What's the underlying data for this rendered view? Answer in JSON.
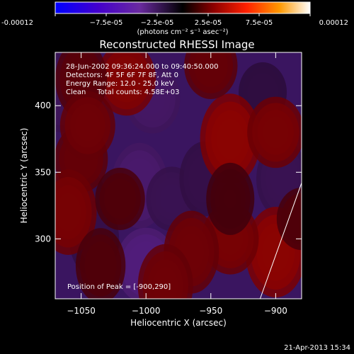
{
  "chart_data": {
    "type": "heatmap",
    "title": "Reconstructed RHESSI Image",
    "xlabel": "Heliocentric X (arcsec)",
    "ylabel": "Heliocentric Y (arcsec)",
    "xlim": [
      -1070,
      -880
    ],
    "ylim": [
      255,
      440
    ],
    "x_ticks": [
      -1050,
      -1000,
      -950,
      -900
    ],
    "y_ticks": [
      300,
      350,
      400
    ],
    "colorbar": {
      "range": [
        -0.00012,
        0.00012
      ],
      "tick_labels": [
        "-0.00012",
        "−7.5e-05",
        "−2.5e-05",
        "2.5e-05",
        "7.5e-05",
        "0.00012"
      ],
      "unit_label": "(photons cm⁻² s⁻¹ asec⁻²)"
    },
    "annotations": [
      "28-Jun-2002 09:36:24.000 to 09:40:50.000",
      "Detectors: 4F 5F 6F 7F 8F, Att 0",
      "Energy Range: 12.0 - 25.0 keV",
      "Clean     Total counts: 4.58E+03"
    ],
    "peak_label": "Position of Peak = [-900,290]",
    "peak": [
      -900,
      290
    ],
    "hot_spots": [
      {
        "x": -1015,
        "y": 420,
        "value": 0.00011
      },
      {
        "x": -935,
        "y": 375,
        "value": 0.00012
      },
      {
        "x": -900,
        "y": 380,
        "value": 0.0001
      },
      {
        "x": -900,
        "y": 290,
        "value": 0.00012
      },
      {
        "x": -935,
        "y": 300,
        "value": 0.0001
      },
      {
        "x": -965,
        "y": 290,
        "value": 9e-05
      },
      {
        "x": -1050,
        "y": 360,
        "value": 8e-05
      },
      {
        "x": -1060,
        "y": 320,
        "value": 0.0001
      },
      {
        "x": -1020,
        "y": 330,
        "value": 6e-05
      },
      {
        "x": -985,
        "y": 265,
        "value": 9e-05
      },
      {
        "x": -950,
        "y": 430,
        "value": 8e-05
      },
      {
        "x": -1050,
        "y": 420,
        "value": 7e-05
      },
      {
        "x": -1045,
        "y": 385,
        "value": 9e-05
      },
      {
        "x": -935,
        "y": 330,
        "value": 5e-05
      },
      {
        "x": -880,
        "y": 315,
        "value": 6e-05
      },
      {
        "x": -1035,
        "y": 280,
        "value": 6e-05
      }
    ],
    "cold_spots": [
      {
        "x": -1000,
        "y": 280,
        "value": -0.00012
      },
      {
        "x": -1005,
        "y": 340,
        "value": -0.0001
      },
      {
        "x": -995,
        "y": 405,
        "value": -9e-05
      },
      {
        "x": -1065,
        "y": 410,
        "value": -8e-05
      },
      {
        "x": -980,
        "y": 330,
        "value": -7e-05
      },
      {
        "x": -895,
        "y": 345,
        "value": -7e-05
      },
      {
        "x": -1050,
        "y": 330,
        "value": -6e-05
      },
      {
        "x": -955,
        "y": 345,
        "value": -6e-05
      },
      {
        "x": -910,
        "y": 410,
        "value": -5e-05
      },
      {
        "x": -1040,
        "y": 300,
        "value": -6e-05
      }
    ],
    "limb_line": [
      [
        -912,
        255
      ],
      [
        -880,
        342
      ]
    ],
    "timestamp": "21-Apr-2013 15:34"
  }
}
